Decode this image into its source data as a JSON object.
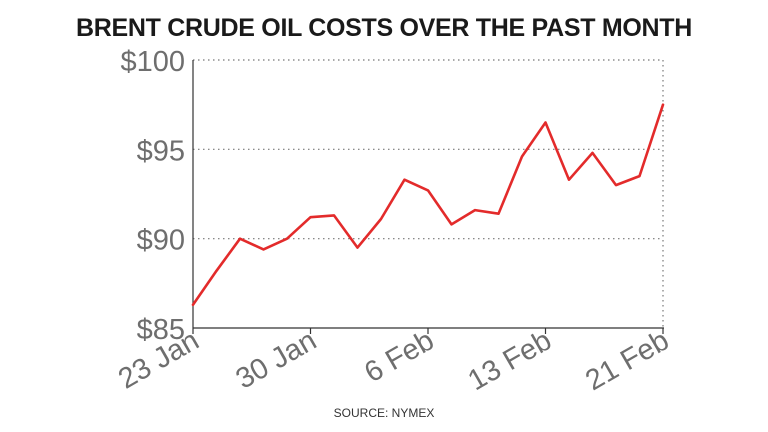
{
  "chart_data": {
    "type": "line",
    "title": "BRENT CRUDE OIL COSTS OVER THE PAST MONTH",
    "xlabel": "",
    "ylabel": "",
    "x_ticks": [
      "23 Jan",
      "30 Jan",
      "6 Feb",
      "13 Feb",
      "21 Feb"
    ],
    "y_ticks": [
      "$85",
      "$90",
      "$95",
      "$100"
    ],
    "ylim": [
      85,
      100
    ],
    "grid": true,
    "line_color": "#e32b2b",
    "series": [
      {
        "values": [
          86.3,
          88.2,
          90.0,
          89.4,
          90.0,
          91.2,
          91.3,
          89.5,
          91.1,
          93.3,
          92.7,
          90.8,
          91.6,
          91.4,
          94.6,
          96.5,
          93.3,
          94.8,
          93.0,
          93.5,
          97.5
        ]
      }
    ]
  },
  "source": "SOURCE: NYMEX"
}
